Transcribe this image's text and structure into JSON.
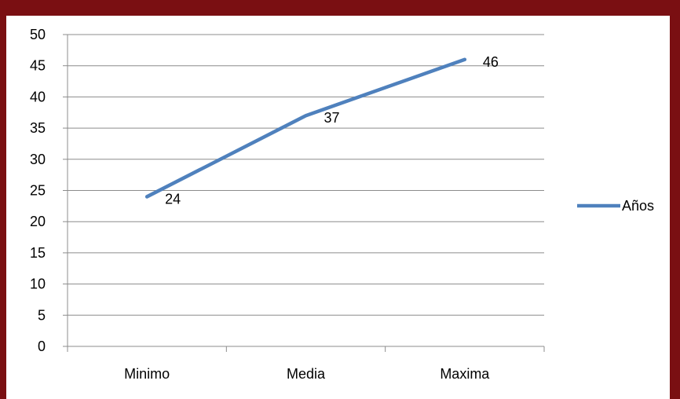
{
  "chart_data": {
    "type": "line",
    "title": "",
    "xlabel": "",
    "ylabel": "",
    "categories": [
      "Minimo",
      "Media",
      "Maxima"
    ],
    "ylim": [
      0,
      50
    ],
    "yticks": [
      "0",
      "5",
      "10",
      "15",
      "20",
      "25",
      "30",
      "35",
      "40",
      "45",
      "50"
    ],
    "grid": true,
    "legend_position": "right",
    "series": [
      {
        "name": "Años",
        "values": [
          24,
          37,
          46
        ],
        "data_labels": [
          "24",
          "37",
          "46"
        ],
        "color": "#4f81bd"
      }
    ]
  },
  "colors": {
    "frame": "#7a0f12",
    "plot_background": "#ffffff",
    "gridline": "#8c8c8c",
    "series_line": "#4f81bd"
  }
}
